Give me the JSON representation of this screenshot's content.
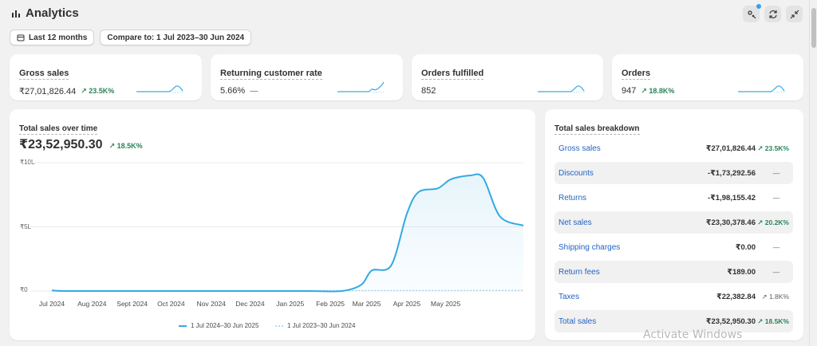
{
  "header": {
    "title": "Analytics"
  },
  "filters": {
    "date_range": "Last 12 months",
    "compare": "Compare to: 1 Jul 2023–30 Jun 2024"
  },
  "metrics": [
    {
      "label": "Gross sales",
      "value": "₹27,01,826.44",
      "change": "23.5K%"
    },
    {
      "label": "Returning customer rate",
      "value": "5.66%",
      "change": "—"
    },
    {
      "label": "Orders fulfilled",
      "value": "852",
      "change": ""
    },
    {
      "label": "Orders",
      "value": "947",
      "change": "18.8K%"
    }
  ],
  "sales_chart": {
    "title": "Total sales over time",
    "total": "₹23,52,950.30",
    "change": "18.5K%",
    "legend": [
      "1 Jul 2024–30 Jun 2025",
      "1 Jul 2023–30 Jun 2024"
    ]
  },
  "chart_data": {
    "type": "line",
    "title": "Total sales over time",
    "x": [
      "Jul 2024",
      "Aug 2024",
      "Sept 2024",
      "Oct 2024",
      "Nov 2024",
      "Dec 2024",
      "Jan 2025",
      "Feb 2025",
      "Mar 2025",
      "Apr 2025",
      "May 2025"
    ],
    "y_tick_labels": [
      "₹10L",
      "₹5L",
      "₹0"
    ],
    "ylim": [
      0,
      1000000
    ],
    "series": [
      {
        "name": "1 Jul 2024–30 Jun 2025",
        "points": [
          [
            "2024-07-01",
            5000
          ],
          [
            "2024-07-10",
            0
          ],
          [
            "2024-08-15",
            0
          ],
          [
            "2024-09-15",
            0
          ],
          [
            "2024-10-15",
            0
          ],
          [
            "2024-11-15",
            0
          ],
          [
            "2024-12-15",
            0
          ],
          [
            "2025-01-15",
            0
          ],
          [
            "2025-02-10",
            0
          ],
          [
            "2025-02-25",
            50000
          ],
          [
            "2025-03-05",
            160000
          ],
          [
            "2025-03-20",
            200000
          ],
          [
            "2025-04-01",
            600000
          ],
          [
            "2025-04-10",
            770000
          ],
          [
            "2025-04-25",
            800000
          ],
          [
            "2025-05-05",
            870000
          ],
          [
            "2025-05-20",
            900000
          ],
          [
            "2025-05-30",
            880000
          ],
          [
            "2025-06-12",
            580000
          ],
          [
            "2025-06-30",
            510000
          ]
        ]
      },
      {
        "name": "1 Jul 2023–30 Jun 2024",
        "points": [
          [
            "2024-07-01",
            0
          ],
          [
            "2025-06-30",
            5000
          ]
        ]
      }
    ],
    "grid": true,
    "legend_position": "bottom"
  },
  "breakdown": {
    "title": "Total sales breakdown",
    "rows": [
      {
        "name": "Gross sales",
        "value": "₹27,01,826.44",
        "change": "23.5K%"
      },
      {
        "name": "Discounts",
        "value": "-₹1,73,292.56",
        "change": "—"
      },
      {
        "name": "Returns",
        "value": "-₹1,98,155.42",
        "change": "—"
      },
      {
        "name": "Net sales",
        "value": "₹23,30,378.46",
        "change": "20.2K%"
      },
      {
        "name": "Shipping charges",
        "value": "₹0.00",
        "change": "—"
      },
      {
        "name": "Return fees",
        "value": "₹189.00",
        "change": "—"
      },
      {
        "name": "Taxes",
        "value": "₹22,382.84",
        "change": "1.8K%"
      },
      {
        "name": "Total sales",
        "value": "₹23,52,950.30",
        "change": "18.5K%"
      }
    ]
  },
  "watermark": "Activate Windows",
  "colors": {
    "primary_line": "#33a9e3",
    "positive": "#29845a",
    "link": "#2464c2"
  }
}
